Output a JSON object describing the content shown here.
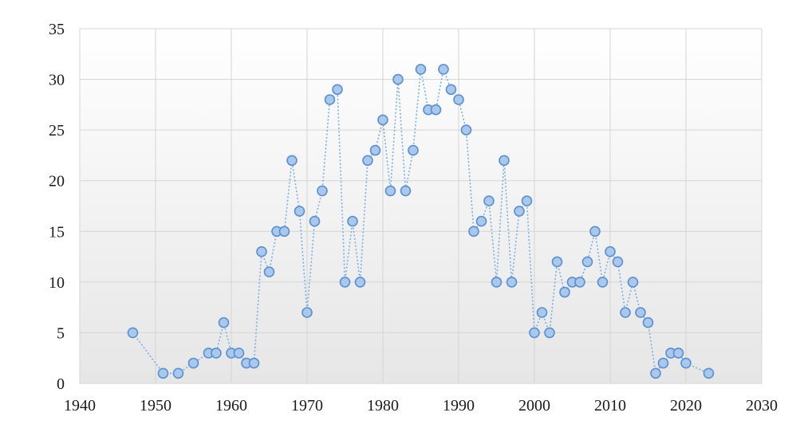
{
  "chart_data": {
    "type": "line",
    "title": "",
    "xlabel": "",
    "ylabel": "",
    "xlim": [
      1940,
      2030
    ],
    "ylim": [
      0,
      35
    ],
    "xticks": [
      1940,
      1950,
      1960,
      1970,
      1980,
      1990,
      2000,
      2010,
      2020,
      2030
    ],
    "yticks": [
      0,
      5,
      10,
      15,
      20,
      25,
      30,
      35
    ],
    "grid": true,
    "legend": "none",
    "line_style": "dotted",
    "colors": {
      "line": "#7aaee0",
      "marker_fill": "#a9c8ec",
      "marker_stroke": "#5b8fd0",
      "grid": "#d4d4d4"
    },
    "x": [
      1947,
      1951,
      1953,
      1955,
      1957,
      1958,
      1959,
      1960,
      1961,
      1962,
      1963,
      1964,
      1965,
      1966,
      1967,
      1968,
      1969,
      1970,
      1971,
      1972,
      1973,
      1974,
      1975,
      1976,
      1977,
      1978,
      1979,
      1980,
      1981,
      1982,
      1983,
      1984,
      1985,
      1986,
      1987,
      1988,
      1989,
      1990,
      1991,
      1992,
      1993,
      1994,
      1995,
      1996,
      1997,
      1998,
      1999,
      2000,
      2001,
      2002,
      2003,
      2004,
      2005,
      2006,
      2007,
      2008,
      2009,
      2010,
      2011,
      2012,
      2013,
      2014,
      2015,
      2016,
      2017,
      2018,
      2019,
      2020,
      2023
    ],
    "y": [
      5,
      1,
      1,
      2,
      3,
      3,
      6,
      3,
      3,
      2,
      2,
      13,
      11,
      15,
      15,
      22,
      17,
      7,
      16,
      19,
      28,
      29,
      10,
      16,
      10,
      22,
      23,
      26,
      19,
      30,
      19,
      23,
      31,
      27,
      27,
      31,
      29,
      28,
      25,
      15,
      16,
      18,
      10,
      22,
      10,
      17,
      18,
      5,
      7,
      5,
      12,
      9,
      10,
      10,
      12,
      15,
      10,
      13,
      12,
      7,
      10,
      7,
      6,
      1,
      2,
      3,
      3,
      2,
      1
    ]
  }
}
